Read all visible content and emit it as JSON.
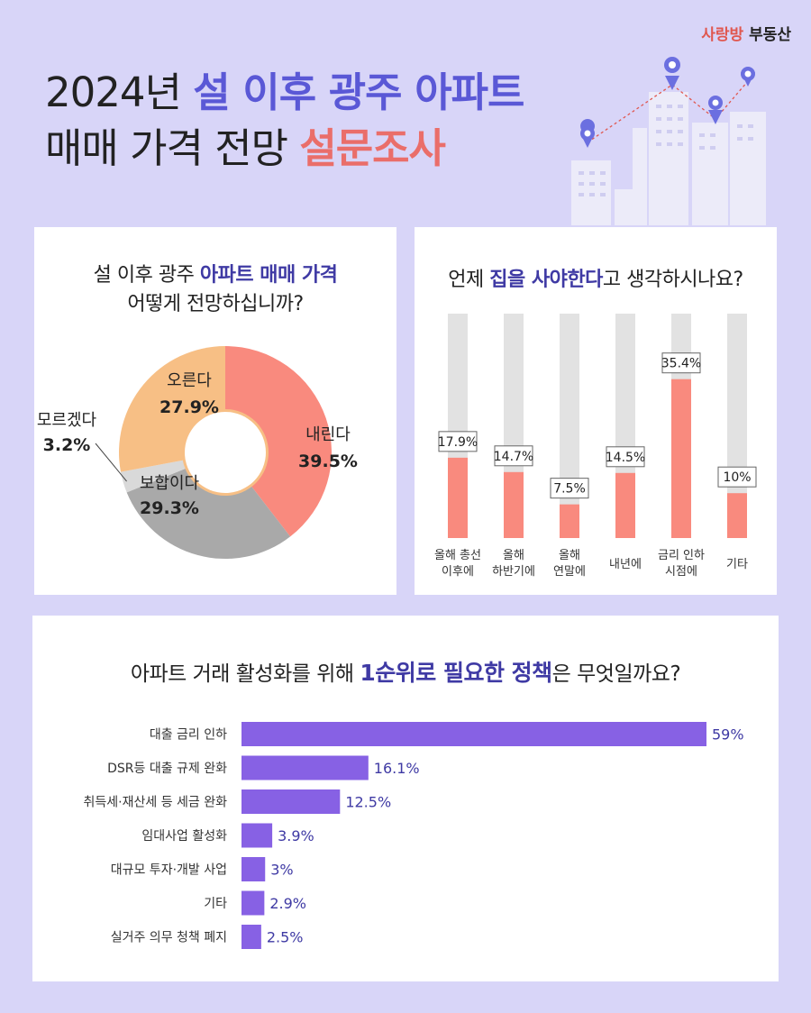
{
  "brand": {
    "part1": "사랑방",
    "part2": "부동산"
  },
  "header": {
    "line1_a": "2024년 ",
    "line1_b": "설 이후 광주 아파트",
    "line2_a": "매매 가격 전망 ",
    "line2_b": "설문조사"
  },
  "colors": {
    "background": "#d8d5f8",
    "accent_blue": "#5a58d6",
    "accent_red": "#ea6e6a",
    "salmon": "#f98a7e",
    "purple": "#8761e4",
    "track_gray": "#e2e2e2"
  },
  "pie_card": {
    "title_a": "설 이후 광주 ",
    "title_b": "아파트 매매 가격",
    "title_c": "어떻게 전망하십니까?"
  },
  "bar_card": {
    "title_a": "언제 ",
    "title_b": "집을 사야한다",
    "title_c": "고 생각하시나요?"
  },
  "hbar_card": {
    "title_a": "아파트 거래 활성화를 위해 ",
    "title_b": "1순위로 필요한 정책",
    "title_c": "은 무엇일까요?"
  },
  "chart_data": [
    {
      "type": "pie",
      "style": "donut",
      "slices": [
        {
          "label": "내린다",
          "value": 39.5,
          "display": "39.5%",
          "color": "#f98a7e"
        },
        {
          "label": "보합이다",
          "value": 29.3,
          "display": "29.3%",
          "color": "#a9a9a9"
        },
        {
          "label": "모르겠다",
          "value": 3.2,
          "display": "3.2%",
          "color": "#d9d9d9"
        },
        {
          "label": "오른다",
          "value": 27.9,
          "display": "27.9%",
          "color": "#f7bf85"
        }
      ]
    },
    {
      "type": "bar",
      "orientation": "vertical",
      "categories": [
        [
          "올해 총선",
          "이후에"
        ],
        [
          "올해",
          "하반기에"
        ],
        [
          "올해",
          "연말에"
        ],
        [
          "내년에"
        ],
        [
          "금리 인하",
          "시점에"
        ],
        [
          "기타"
        ]
      ],
      "values": [
        17.9,
        14.7,
        7.5,
        14.5,
        35.4,
        10
      ],
      "labels": [
        "17.9%",
        "14.7%",
        "7.5%",
        "14.5%",
        "35.4%",
        "10%"
      ],
      "ylim": [
        0,
        50
      ],
      "bar_color": "#f98a7e",
      "track_color": "#e2e2e2"
    },
    {
      "type": "bar",
      "orientation": "horizontal",
      "categories": [
        "대출 금리 인하",
        "DSR등 대출 규제 완화",
        "취득세·재산세 등 세금 완화",
        "임대사업 활성화",
        "대규모 투자·개발 사업",
        "기타",
        "실거주 의무 청책 폐지"
      ],
      "values": [
        59,
        16.1,
        12.5,
        3.9,
        3,
        2.9,
        2.5
      ],
      "labels": [
        "59%",
        "16.1%",
        "12.5%",
        "3.9%",
        "3%",
        "2.9%",
        "2.5%"
      ],
      "xlim": [
        0,
        59
      ],
      "bar_color": "#8761e4"
    }
  ]
}
